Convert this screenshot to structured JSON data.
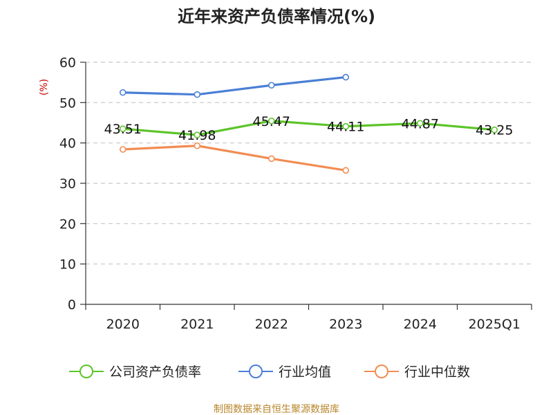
{
  "chart_data": {
    "type": "line",
    "title": "近年来资产负债率情况(%)",
    "unit_label": "(%)",
    "categories": [
      "2020",
      "2021",
      "2022",
      "2023",
      "2024",
      "2025Q1"
    ],
    "ylim": [
      0,
      60
    ],
    "yticks": [
      0,
      10,
      20,
      30,
      40,
      50,
      60
    ],
    "grid": true,
    "legend_position": "bottom",
    "series": [
      {
        "name": "公司资产负债率",
        "color": "#5dc42a",
        "values": [
          43.51,
          41.98,
          45.47,
          44.11,
          44.87,
          43.25
        ],
        "labels": [
          "43.51",
          "41.98",
          "45.47",
          "44.11",
          "44.87",
          "43.25"
        ]
      },
      {
        "name": "行业均值",
        "color": "#4a7fd6",
        "values": [
          52.5,
          52.0,
          54.3,
          56.3,
          null,
          null
        ]
      },
      {
        "name": "行业中位数",
        "color": "#f28c52",
        "values": [
          38.4,
          39.3,
          36.1,
          33.2,
          null,
          null
        ]
      }
    ],
    "source": "制图数据来自恒生聚源数据库"
  }
}
